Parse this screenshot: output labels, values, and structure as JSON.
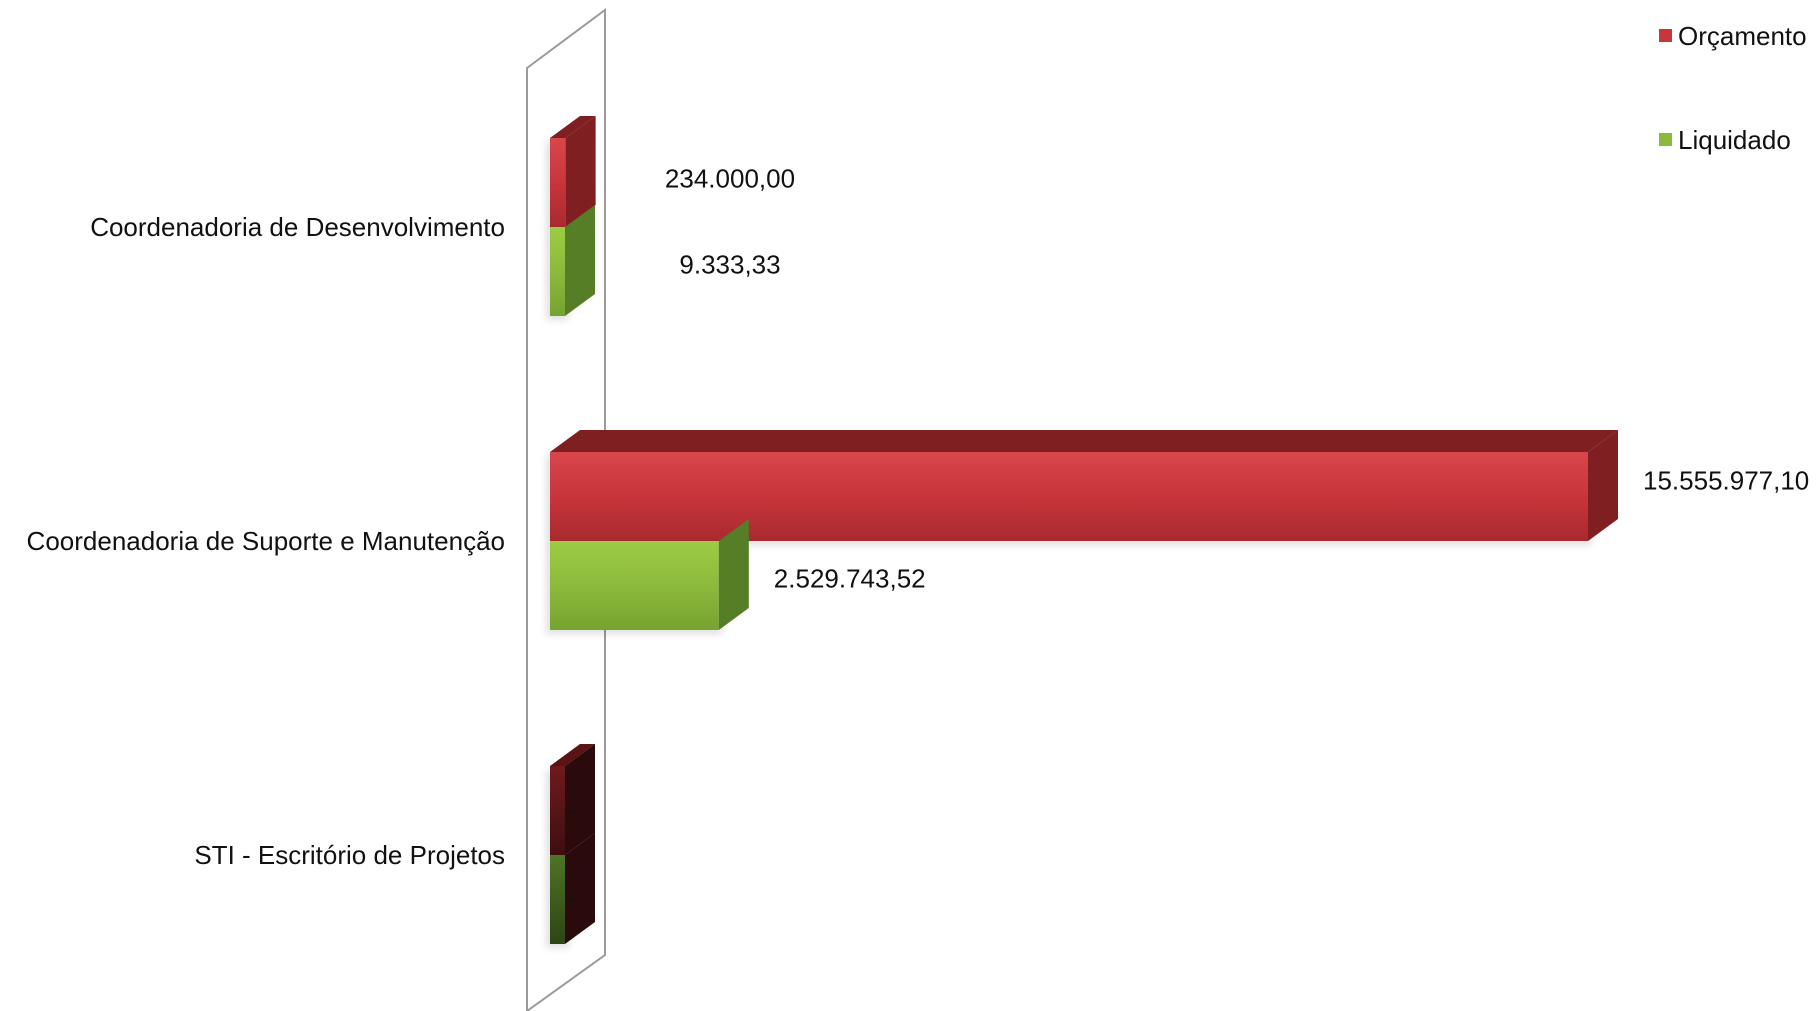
{
  "chart_data": {
    "type": "bar",
    "orientation": "horizontal",
    "style": "3d",
    "categories": [
      "Coordenadoria de Desenvolvimento",
      "Coordenadoria de Suporte e Manutenção",
      "STI - Escritório de Projetos"
    ],
    "series": [
      {
        "name": "Orçamento",
        "color": "#c8353a",
        "values": [
          234000.0,
          15555977.1,
          0
        ],
        "labels": [
          "234.000,00",
          "15.555.977,10",
          "-"
        ]
      },
      {
        "name": "Liquidado",
        "color": "#8cba3c",
        "values": [
          9333.33,
          2529743.52,
          0
        ],
        "labels": [
          "9.333,33",
          "2.529.743,52",
          "-"
        ]
      }
    ],
    "xlim": [
      0,
      15555977.1
    ],
    "grid": false,
    "legend_position": "top-right"
  }
}
